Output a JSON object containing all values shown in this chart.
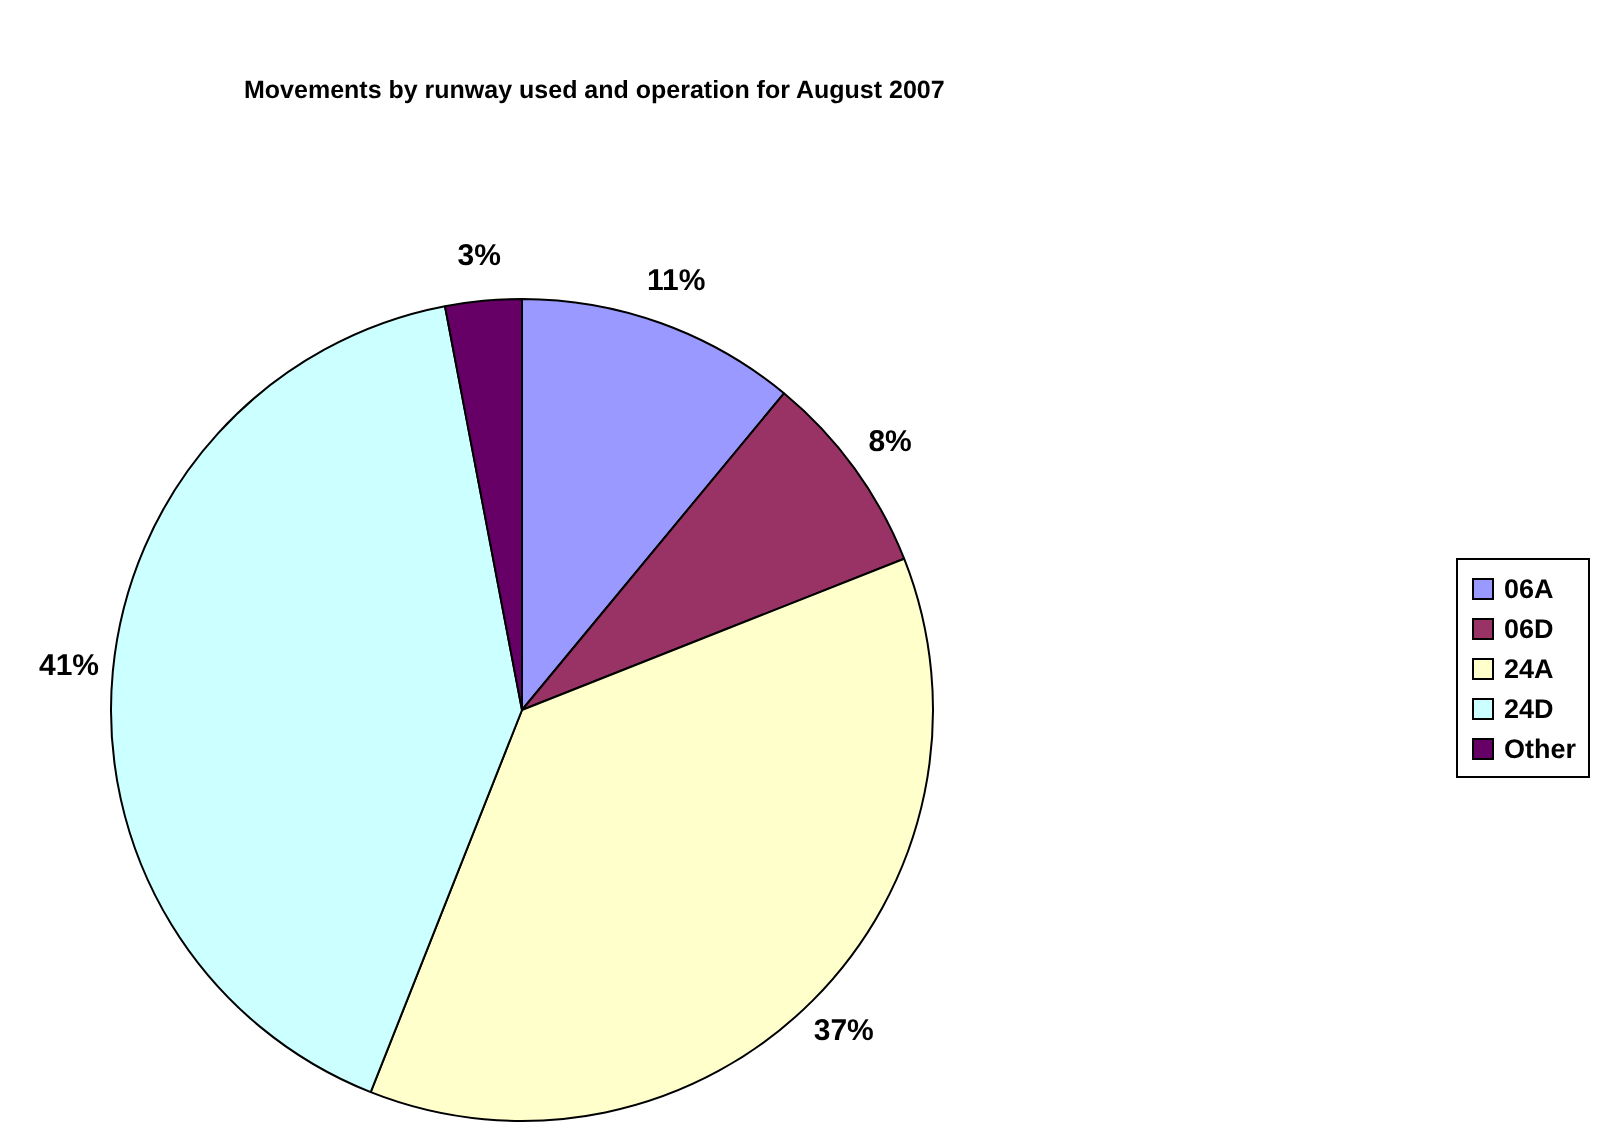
{
  "chart_data": {
    "type": "pie",
    "title": "Movements by runway used and operation for August 2007",
    "categories": [
      "06A",
      "06D",
      "24A",
      "24D",
      "Other"
    ],
    "values": [
      11,
      8,
      37,
      41,
      3
    ],
    "value_labels": [
      "11%",
      "8%",
      "37%",
      "41%",
      "3%"
    ],
    "colors": [
      "#9999ff",
      "#993366",
      "#ffffcc",
      "#ccffff",
      "#660066"
    ],
    "legend": "right"
  }
}
